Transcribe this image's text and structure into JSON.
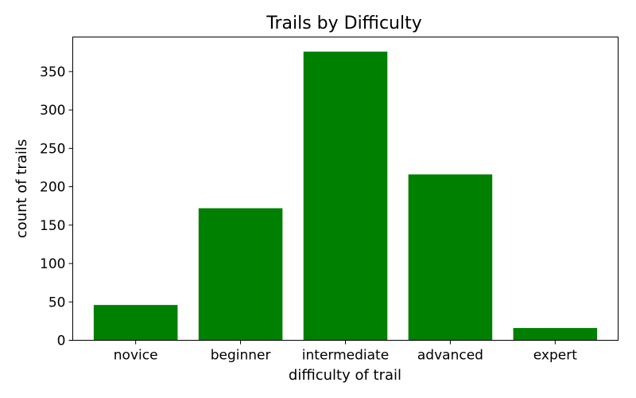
{
  "chart_data": {
    "type": "bar",
    "title": "Trails by Difficulty",
    "xlabel": "difficulty of trail",
    "ylabel": "count of trails",
    "categories": [
      "novice",
      "beginner",
      "intermediate",
      "advanced",
      "expert"
    ],
    "values": [
      46,
      172,
      376,
      216,
      16
    ],
    "ylim": [
      0,
      395
    ],
    "yticks": [
      0,
      50,
      100,
      150,
      200,
      250,
      300,
      350
    ],
    "bar_color": "#008000",
    "grid": false,
    "legend": "none"
  }
}
